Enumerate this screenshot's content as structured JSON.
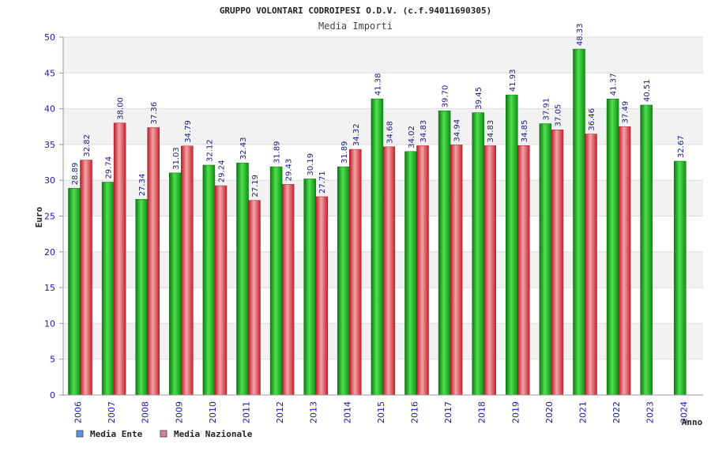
{
  "chart_data": {
    "type": "bar",
    "title": "GRUPPO VOLONTARI CODROIPESI O.D.V. (c.f.94011690305)",
    "subtitle": "Media Importi",
    "xlabel": "Anno",
    "ylabel": "Euro",
    "ylim": [
      0,
      50
    ],
    "yticks": [
      "0",
      "5",
      "10",
      "15",
      "20",
      "25",
      "30",
      "35",
      "40",
      "45",
      "50"
    ],
    "grid": true,
    "legend_position": "bottom-left",
    "categories": [
      "2006",
      "2007",
      "2008",
      "2009",
      "2010",
      "2011",
      "2012",
      "2013",
      "2014",
      "2015",
      "2016",
      "2017",
      "2018",
      "2019",
      "2020",
      "2021",
      "2022",
      "2023",
      "2024"
    ],
    "series": [
      {
        "name": "Media Ente",
        "legend_color": "#5b8ff0",
        "bar_color": "#19b01e",
        "values": [
          28.89,
          29.74,
          27.34,
          31.03,
          32.12,
          32.43,
          31.89,
          30.19,
          31.89,
          41.38,
          34.02,
          39.7,
          39.45,
          41.93,
          37.91,
          48.33,
          41.37,
          40.51,
          32.67
        ],
        "labels": [
          "28.89",
          "29.74",
          "27.34",
          "31.03",
          "32.12",
          "32.43",
          "31.89",
          "30.19",
          "31.89",
          "41.38",
          "34.02",
          "39.70",
          "39.45",
          "41.93",
          "37.91",
          "48.33",
          "41.37",
          "40.51",
          "32.67"
        ]
      },
      {
        "name": "Media Nazionale",
        "legend_color": "#e27aa6",
        "bar_color": "#e8303a",
        "values": [
          32.82,
          38.0,
          37.36,
          34.79,
          29.24,
          27.19,
          29.43,
          27.71,
          34.32,
          34.68,
          34.83,
          34.94,
          34.83,
          34.85,
          37.05,
          36.46,
          37.49,
          null,
          null
        ],
        "labels": [
          "32.82",
          "38.00",
          "37.36",
          "34.79",
          "29.24",
          "27.19",
          "29.43",
          "27.71",
          "34.32",
          "34.68",
          "34.83",
          "34.94",
          "34.83",
          "34.85",
          "37.05",
          "36.46",
          "37.49",
          null,
          null
        ]
      }
    ]
  }
}
